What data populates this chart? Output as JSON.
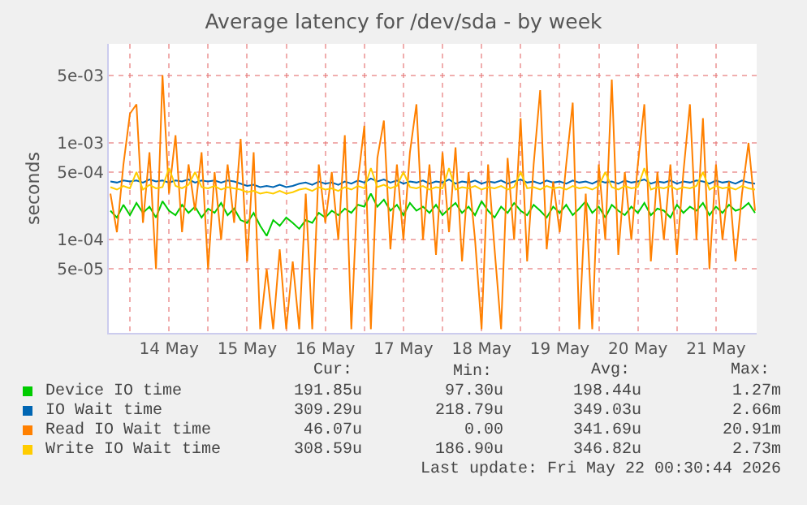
{
  "chart_data": {
    "type": "line",
    "title": "Average latency for /dev/sda - by week",
    "ylabel": "seconds",
    "log": "y",
    "grid": true,
    "legend": "bottom",
    "marker": "none",
    "line_style": "solid",
    "xlim": [
      "2026-05-13T17:30",
      "2026-05-22T00:30"
    ],
    "xticks": [
      {
        "value": "2026-05-14T00:00",
        "label": null
      },
      {
        "value": "2026-05-14T12:00",
        "label": "14 May"
      },
      {
        "value": "2026-05-15T00:00",
        "label": null
      },
      {
        "value": "2026-05-15T12:00",
        "label": "15 May"
      },
      {
        "value": "2026-05-16T00:00",
        "label": null
      },
      {
        "value": "2026-05-16T12:00",
        "label": "16 May"
      },
      {
        "value": "2026-05-17T00:00",
        "label": null
      },
      {
        "value": "2026-05-17T12:00",
        "label": "17 May"
      },
      {
        "value": "2026-05-18T00:00",
        "label": null
      },
      {
        "value": "2026-05-18T12:00",
        "label": "18 May"
      },
      {
        "value": "2026-05-19T00:00",
        "label": null
      },
      {
        "value": "2026-05-19T12:00",
        "label": "19 May"
      },
      {
        "value": "2026-05-20T00:00",
        "label": null
      },
      {
        "value": "2026-05-20T12:00",
        "label": "20 May"
      },
      {
        "value": "2026-05-21T00:00",
        "label": null
      },
      {
        "value": "2026-05-21T12:00",
        "label": "21 May"
      },
      {
        "value": "2026-05-22T00:00",
        "label": null
      }
    ],
    "ylim": [
      1.1e-05,
      0.0105
    ],
    "yticks": [
      {
        "value": 5e-05,
        "label": "5e-05"
      },
      {
        "value": 0.0001,
        "label": "1e-04"
      },
      {
        "value": 0.0005,
        "label": "5e-04"
      },
      {
        "value": 0.001,
        "label": "1e-03"
      },
      {
        "value": 0.005,
        "label": "5e-03"
      }
    ],
    "x": [
      "2026-05-13T18:00",
      "2026-05-13T20:00",
      "2026-05-13T22:00",
      "2026-05-14T00:00",
      "2026-05-14T02:00",
      "2026-05-14T04:00",
      "2026-05-14T06:00",
      "2026-05-14T08:00",
      "2026-05-14T10:00",
      "2026-05-14T12:00",
      "2026-05-14T14:00",
      "2026-05-14T16:00",
      "2026-05-14T18:00",
      "2026-05-14T20:00",
      "2026-05-14T22:00",
      "2026-05-15T00:00",
      "2026-05-15T02:00",
      "2026-05-15T04:00",
      "2026-05-15T06:00",
      "2026-05-15T08:00",
      "2026-05-15T10:00",
      "2026-05-15T12:00",
      "2026-05-15T14:00",
      "2026-05-15T16:00",
      "2026-05-15T18:00",
      "2026-05-15T20:00",
      "2026-05-15T22:00",
      "2026-05-16T00:00",
      "2026-05-16T02:00",
      "2026-05-16T04:00",
      "2026-05-16T06:00",
      "2026-05-16T08:00",
      "2026-05-16T10:00",
      "2026-05-16T12:00",
      "2026-05-16T14:00",
      "2026-05-16T16:00",
      "2026-05-16T18:00",
      "2026-05-16T20:00",
      "2026-05-16T22:00",
      "2026-05-17T00:00",
      "2026-05-17T02:00",
      "2026-05-17T04:00",
      "2026-05-17T06:00",
      "2026-05-17T08:00",
      "2026-05-17T10:00",
      "2026-05-17T12:00",
      "2026-05-17T14:00",
      "2026-05-17T16:00",
      "2026-05-17T18:00",
      "2026-05-17T20:00",
      "2026-05-17T22:00",
      "2026-05-18T00:00",
      "2026-05-18T02:00",
      "2026-05-18T04:00",
      "2026-05-18T06:00",
      "2026-05-18T08:00",
      "2026-05-18T10:00",
      "2026-05-18T12:00",
      "2026-05-18T14:00",
      "2026-05-18T16:00",
      "2026-05-18T18:00",
      "2026-05-18T20:00",
      "2026-05-18T22:00",
      "2026-05-19T00:00",
      "2026-05-19T02:00",
      "2026-05-19T04:00",
      "2026-05-19T06:00",
      "2026-05-19T08:00",
      "2026-05-19T10:00",
      "2026-05-19T12:00",
      "2026-05-19T14:00",
      "2026-05-19T16:00",
      "2026-05-19T18:00",
      "2026-05-19T20:00",
      "2026-05-19T22:00",
      "2026-05-20T00:00",
      "2026-05-20T02:00",
      "2026-05-20T04:00",
      "2026-05-20T06:00",
      "2026-05-20T08:00",
      "2026-05-20T10:00",
      "2026-05-20T12:00",
      "2026-05-20T14:00",
      "2026-05-20T16:00",
      "2026-05-20T18:00",
      "2026-05-20T20:00",
      "2026-05-20T22:00",
      "2026-05-21T00:00",
      "2026-05-21T02:00",
      "2026-05-21T04:00",
      "2026-05-21T06:00",
      "2026-05-21T08:00",
      "2026-05-21T10:00",
      "2026-05-21T12:00",
      "2026-05-21T14:00",
      "2026-05-21T16:00",
      "2026-05-21T18:00",
      "2026-05-21T20:00",
      "2026-05-21T22:00",
      "2026-05-22T00:00"
    ],
    "series": [
      {
        "name": "Device IO time",
        "color": "#00cc00",
        "values": [
          0.0002,
          0.00017,
          0.00023,
          0.00018,
          0.00024,
          0.00019,
          0.00022,
          0.00017,
          0.00025,
          0.0002,
          0.00018,
          0.00023,
          0.00019,
          0.00022,
          0.00017,
          0.00021,
          0.00019,
          0.00024,
          0.00018,
          0.00021,
          0.00016,
          0.00015,
          0.00019,
          0.00014,
          0.00011,
          0.00016,
          0.00014,
          0.00017,
          0.00015,
          0.00013,
          0.00016,
          0.00015,
          0.00019,
          0.00017,
          0.0002,
          0.00018,
          0.00021,
          0.00019,
          0.00023,
          0.00022,
          0.0003,
          0.00022,
          0.00026,
          0.0002,
          0.00023,
          0.00018,
          0.00024,
          0.0002,
          0.00022,
          0.00019,
          0.00023,
          0.00018,
          0.00021,
          0.00024,
          0.00019,
          0.00022,
          0.00018,
          0.00025,
          0.0002,
          0.00017,
          0.00022,
          0.00019,
          0.00024,
          0.0002,
          0.00018,
          0.00023,
          0.0002,
          0.00017,
          0.00022,
          0.00019,
          0.00023,
          0.00018,
          0.00021,
          0.00025,
          0.00019,
          0.00022,
          0.00017,
          0.00023,
          0.0002,
          0.00018,
          0.00022,
          0.00019,
          0.00024,
          0.00018,
          0.00021,
          0.0002,
          0.00017,
          0.00023,
          0.00019,
          0.00022,
          0.0002,
          0.00024,
          0.00018,
          0.00022,
          0.00019,
          0.00023,
          0.0002,
          0.00021,
          0.00024,
          0.00019
        ]
      },
      {
        "name": "IO Wait time",
        "color": "#0066b3",
        "values": [
          0.0004,
          0.00039,
          0.00041,
          0.0004,
          0.00041,
          0.00039,
          0.00042,
          0.0004,
          0.00041,
          0.00039,
          0.00041,
          0.0004,
          0.00042,
          0.00039,
          0.00041,
          0.0004,
          0.00041,
          0.00039,
          0.00041,
          0.0004,
          0.00038,
          0.00036,
          0.00037,
          0.00035,
          0.00036,
          0.00035,
          0.00037,
          0.00035,
          0.00036,
          0.00038,
          0.00039,
          0.00037,
          0.0004,
          0.00038,
          0.00039,
          0.00037,
          0.0004,
          0.00038,
          0.00041,
          0.00039,
          0.00043,
          0.0004,
          0.00042,
          0.00039,
          0.00041,
          0.00038,
          0.0004,
          0.00039,
          0.00041,
          0.00038,
          0.0004,
          0.00039,
          0.00042,
          0.00038,
          0.0004,
          0.00039,
          0.00041,
          0.00038,
          0.0004,
          0.00039,
          0.00041,
          0.00038,
          0.0004,
          0.00042,
          0.00039,
          0.0004,
          0.00038,
          0.00041,
          0.00039,
          0.0004,
          0.00038,
          0.00041,
          0.00039,
          0.0004,
          0.00038,
          0.00041,
          0.00039,
          0.0004,
          0.00038,
          0.00041,
          0.00039,
          0.0004,
          0.00042,
          0.00038,
          0.0004,
          0.00039,
          0.00041,
          0.00038,
          0.0004,
          0.00039,
          0.00041,
          0.0004,
          0.00038,
          0.00041,
          0.00039,
          0.0004,
          0.00038,
          0.00041,
          0.00039,
          0.00038
        ]
      },
      {
        "name": "Read IO Wait time",
        "color": "#ff8000",
        "values": [
          0.0003,
          0.00012,
          0.0006,
          0.002,
          0.0025,
          0.00015,
          0.0008,
          5e-05,
          0.005,
          0.0003,
          0.0012,
          0.00012,
          0.0006,
          0.0002,
          0.0008,
          5e-05,
          0.0005,
          0.0001,
          0.0006,
          0.00015,
          0.0011,
          6e-05,
          0.0008,
          1.2e-05,
          5e-05,
          1.2e-05,
          8e-05,
          1.2e-05,
          6e-05,
          1.2e-05,
          0.0003,
          1.2e-05,
          0.0006,
          0.00015,
          0.0005,
          0.0001,
          0.0012,
          1.2e-05,
          0.0004,
          0.0015,
          1.2e-05,
          0.0007,
          0.0017,
          8e-05,
          0.0006,
          0.0001,
          0.0008,
          0.0025,
          0.0001,
          0.0006,
          7e-05,
          0.0008,
          0.00012,
          0.0009,
          6e-05,
          0.0005,
          0.0001,
          1.2e-05,
          0.0006,
          8e-05,
          1.2e-05,
          0.0007,
          0.0001,
          0.0018,
          6e-05,
          0.0006,
          0.0035,
          8e-05,
          0.0004,
          0.00012,
          0.0006,
          0.0026,
          1.2e-05,
          0.0003,
          1.2e-05,
          0.0006,
          0.0001,
          0.0045,
          7e-05,
          0.0005,
          0.0001,
          0.0006,
          0.0025,
          6e-05,
          0.0005,
          0.0001,
          0.0006,
          7e-05,
          0.0005,
          0.0025,
          0.0001,
          0.0018,
          5e-05,
          0.0006,
          0.0001,
          0.0004,
          6e-05,
          0.0003,
          0.001,
          0.0002
        ]
      },
      {
        "name": "Write IO Wait time",
        "color": "#ffcc00",
        "values": [
          0.00035,
          0.00033,
          0.00036,
          0.00034,
          0.0005,
          0.00033,
          0.00037,
          0.00034,
          0.00035,
          0.00055,
          0.00036,
          0.00034,
          0.00037,
          0.0005,
          0.00035,
          0.00034,
          0.00036,
          0.00033,
          0.00035,
          0.00034,
          0.00033,
          0.00031,
          0.00032,
          0.0003,
          0.00031,
          0.0003,
          0.00032,
          0.0003,
          0.00031,
          0.00033,
          0.00034,
          0.00032,
          0.00035,
          0.00033,
          0.00034,
          0.00032,
          0.00035,
          0.00033,
          0.00036,
          0.00034,
          0.00055,
          0.00035,
          0.00037,
          0.00034,
          0.00036,
          0.0005,
          0.00035,
          0.00034,
          0.00036,
          0.00033,
          0.00035,
          0.00034,
          0.00055,
          0.00033,
          0.00035,
          0.00034,
          0.00036,
          0.00033,
          0.00035,
          0.00034,
          0.00036,
          0.00033,
          0.00035,
          0.0005,
          0.00034,
          0.00035,
          0.00033,
          0.00036,
          0.00034,
          0.00035,
          0.00033,
          0.00036,
          0.00034,
          0.00035,
          0.00033,
          0.00036,
          0.0005,
          0.00035,
          0.00033,
          0.00036,
          0.00034,
          0.00035,
          0.00055,
          0.00033,
          0.00035,
          0.00034,
          0.00036,
          0.00033,
          0.00035,
          0.00034,
          0.00036,
          0.0005,
          0.00033,
          0.00036,
          0.00034,
          0.00035,
          0.00033,
          0.00036,
          0.00034,
          0.00033
        ]
      }
    ],
    "annotations": [
      "Cur:",
      "Min:",
      "Avg:",
      "Max:",
      "191.85u",
      "97.30u",
      "198.44u",
      "1.27m",
      "309.29u",
      "218.79u",
      "349.03u",
      "2.66m",
      "46.07u",
      "0.00",
      "341.69u",
      "20.91m",
      "308.59u",
      "186.90u",
      "346.82u",
      "2.73m",
      "Last update: Fri May 22 00:30:44 2026"
    ]
  }
}
